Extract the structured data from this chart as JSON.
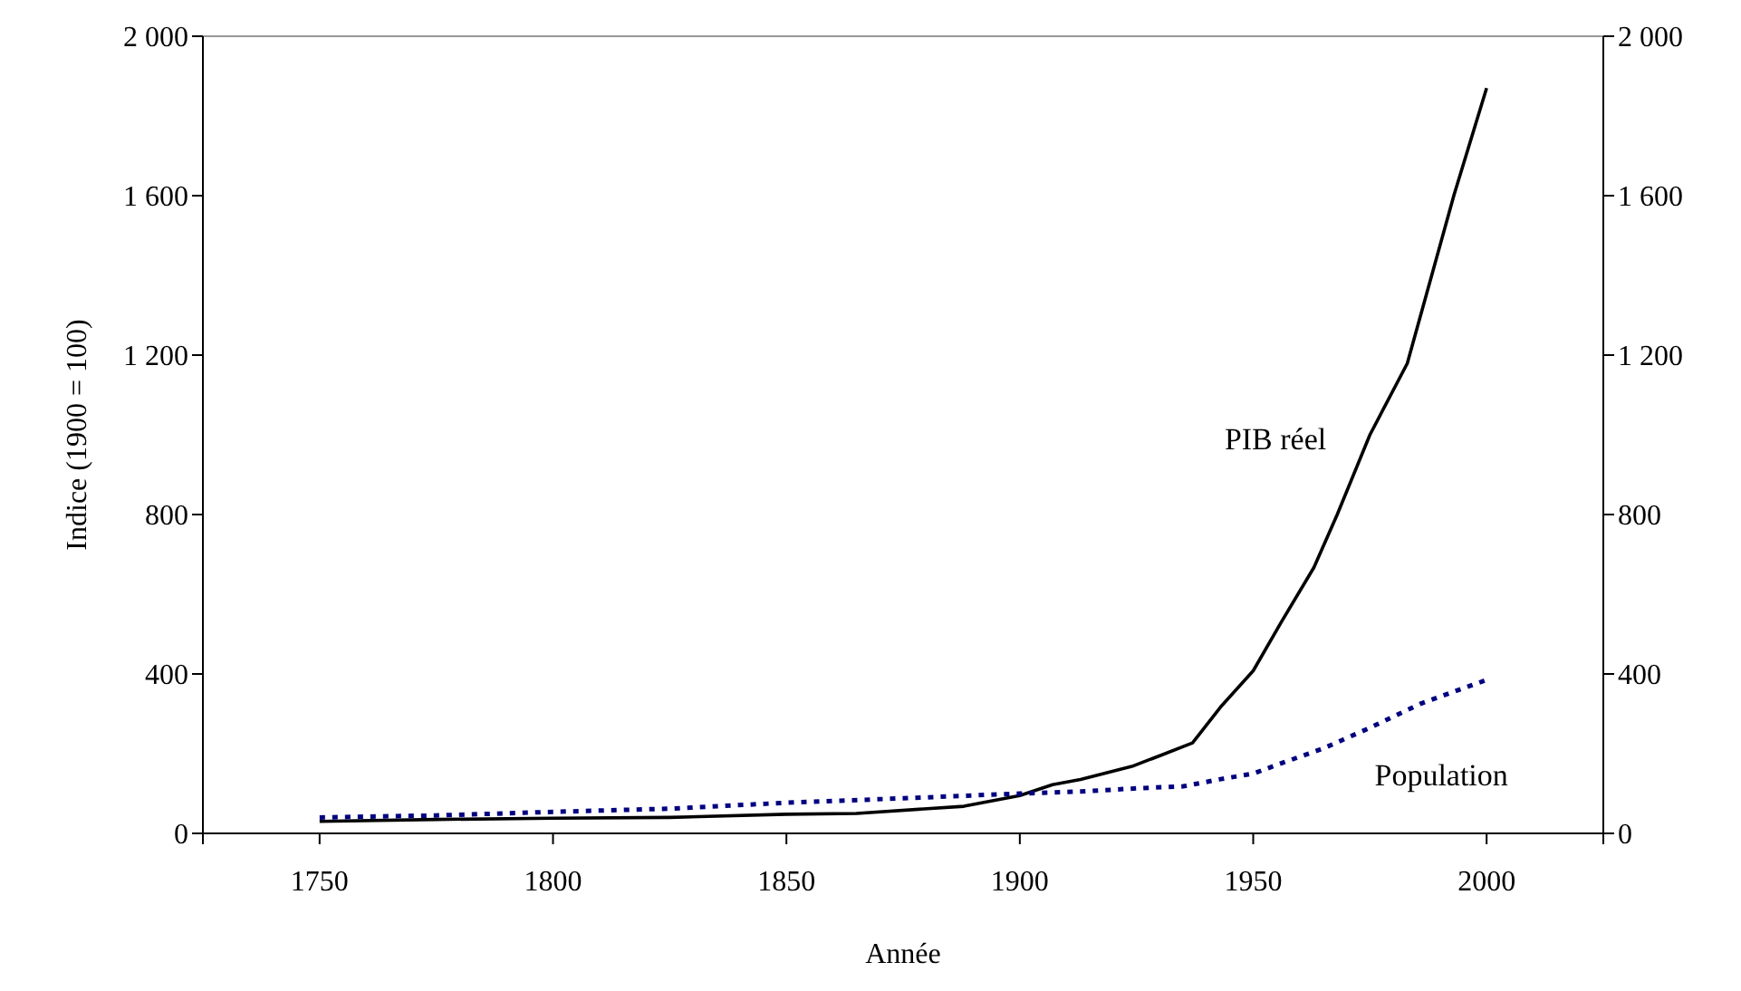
{
  "chart_data": {
    "type": "line",
    "xlabel": "Année",
    "ylabel": "Indice (1900 = 100)",
    "xlim": [
      1725,
      2025
    ],
    "xticks": [
      {
        "value": 1725,
        "label": null
      },
      1750,
      1800,
      1850,
      1900,
      1950,
      2000,
      {
        "value": 2025,
        "label": null
      }
    ],
    "ylim": [
      0,
      2000
    ],
    "yticks": [
      0,
      400,
      800,
      {
        "value": 1200,
        "label": "1 200"
      },
      {
        "value": 1600,
        "label": "1 600"
      },
      {
        "value": 2000,
        "label": "2 000"
      }
    ],
    "y2lim": [
      0,
      2000
    ],
    "y2ticks": [
      0,
      400,
      800,
      {
        "value": 1200,
        "label": "1 200"
      },
      {
        "value": 1600,
        "label": "1 600"
      },
      {
        "value": 2000,
        "label": "2 000"
      }
    ],
    "marker": "none",
    "series": [
      {
        "name": "PIB réel",
        "color": "#000000",
        "line_style": "solid",
        "x": [
          1750,
          1775,
          1800,
          1825,
          1850,
          1865,
          1888,
          1900,
          1907,
          1913,
          1924,
          1930,
          1937,
          1943,
          1950,
          1956,
          1963,
          1968,
          1975,
          1983,
          1993,
          2000
        ],
        "values": [
          30,
          35,
          38,
          40,
          48,
          50,
          68,
          95,
          122,
          135,
          168,
          195,
          227,
          317,
          408,
          530,
          667,
          800,
          1000,
          1179,
          1601,
          1870
        ]
      },
      {
        "name": "Population",
        "color": "#000080",
        "line_style": "dotted",
        "x": [
          1750,
          1775,
          1800,
          1825,
          1850,
          1875,
          1900,
          1913,
          1925,
          1935,
          1943,
          1950,
          1957,
          1965,
          1975,
          1986,
          2000
        ],
        "values": [
          40,
          45,
          54,
          62,
          77,
          88,
          100,
          105,
          113,
          118,
          136,
          150,
          180,
          213,
          265,
          326,
          385
        ]
      }
    ]
  }
}
